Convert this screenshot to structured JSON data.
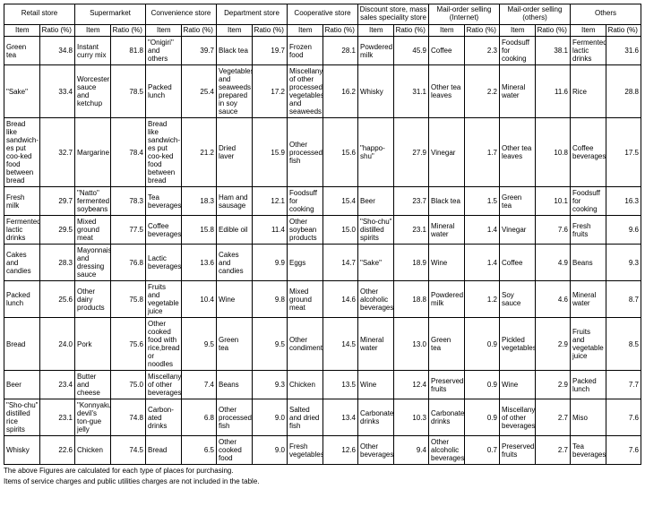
{
  "categories": [
    "Retail store",
    "Supermarket",
    "Convenience store",
    "Department store",
    "Cooperative store",
    "Discount store, mass sales speciality store",
    "Mail-order selling (Internet)",
    "Mail-order selling (others)",
    "Others"
  ],
  "subheaders": {
    "item": "Item",
    "ratio": "Ratio (%)"
  },
  "rows": [
    [
      {
        "item": "Green tea",
        "ratio": "34.8"
      },
      {
        "item": "Instant curry mix",
        "ratio": "81.8"
      },
      {
        "item": "\"Onigiri\" and others",
        "ratio": "39.7"
      },
      {
        "item": "Black tea",
        "ratio": "19.7"
      },
      {
        "item": "Frozen food",
        "ratio": "28.1"
      },
      {
        "item": "Powdered milk",
        "ratio": "45.9"
      },
      {
        "item": "Coffee",
        "ratio": "2.3"
      },
      {
        "item": "Foodsuff for cooking",
        "ratio": "38.1"
      },
      {
        "item": "Fermented lactic drinks",
        "ratio": "31.6"
      }
    ],
    [
      {
        "item": "\"Sake\"",
        "ratio": "33.4"
      },
      {
        "item": "Worcester sauce and ketchup",
        "ratio": "78.5"
      },
      {
        "item": "Packed lunch",
        "ratio": "25.4"
      },
      {
        "item": "Vegetables and seaweeds prepared in soy sauce",
        "ratio": "17.2"
      },
      {
        "item": "Miscellany of other processed vegetables and seaweeds",
        "ratio": "16.2"
      },
      {
        "item": "Whisky",
        "ratio": "31.1"
      },
      {
        "item": "Other tea leaves",
        "ratio": "2.2"
      },
      {
        "item": "Mineral water",
        "ratio": "11.6"
      },
      {
        "item": "Rice",
        "ratio": "28.8"
      }
    ],
    [
      {
        "item": "Bread like sandwich-es put coo-ked food between bread",
        "ratio": "32.7"
      },
      {
        "item": "Margarine",
        "ratio": "78.4"
      },
      {
        "item": "Bread like sandwich-es put coo-ked food between bread",
        "ratio": "21.2"
      },
      {
        "item": "Dried laver",
        "ratio": "15.9"
      },
      {
        "item": "Other processed fish",
        "ratio": "15.6"
      },
      {
        "item": "\"happo-shu\"",
        "ratio": "27.9"
      },
      {
        "item": "Vinegar",
        "ratio": "1.7"
      },
      {
        "item": "Other tea leaves",
        "ratio": "10.8"
      },
      {
        "item": "Coffee beverages",
        "ratio": "17.5"
      }
    ],
    [
      {
        "item": "Fresh milk",
        "ratio": "29.7"
      },
      {
        "item": "\"Natto\" fermented soybeans",
        "ratio": "78.3"
      },
      {
        "item": "Tea beverages",
        "ratio": "18.3"
      },
      {
        "item": "Ham and sausage",
        "ratio": "12.1"
      },
      {
        "item": "Foodsuff for cooking",
        "ratio": "15.4"
      },
      {
        "item": "Beer",
        "ratio": "23.7"
      },
      {
        "item": "Black tea",
        "ratio": "1.5"
      },
      {
        "item": "Green tea",
        "ratio": "10.1"
      },
      {
        "item": "Foodsuff for cooking",
        "ratio": "16.3"
      }
    ],
    [
      {
        "item": "Fermented lactic drinks",
        "ratio": "29.5"
      },
      {
        "item": "Mixed ground meat",
        "ratio": "77.5"
      },
      {
        "item": "Coffee beverages",
        "ratio": "15.8"
      },
      {
        "item": "Edible oil",
        "ratio": "11.4"
      },
      {
        "item": "Other soybean products",
        "ratio": "15.0"
      },
      {
        "item": "\"Sho-chu\" distilled spirits",
        "ratio": "23.1"
      },
      {
        "item": "Mineral water",
        "ratio": "1.4"
      },
      {
        "item": "Vinegar",
        "ratio": "7.6"
      },
      {
        "item": "Fresh fruits",
        "ratio": "9.6"
      }
    ],
    [
      {
        "item": "Cakes and candies",
        "ratio": "28.3"
      },
      {
        "item": "Mayonnaise and dressing sauce",
        "ratio": "76.8"
      },
      {
        "item": "Lactic beverages",
        "ratio": "13.6"
      },
      {
        "item": "Cakes and candies",
        "ratio": "9.9"
      },
      {
        "item": "Eggs",
        "ratio": "14.7"
      },
      {
        "item": "\"Sake\"",
        "ratio": "18.9"
      },
      {
        "item": "Wine",
        "ratio": "1.4"
      },
      {
        "item": "Coffee",
        "ratio": "4.9"
      },
      {
        "item": "Beans",
        "ratio": "9.3"
      }
    ],
    [
      {
        "item": "Packed lunch",
        "ratio": "25.6"
      },
      {
        "item": "Other dairy products",
        "ratio": "75.8"
      },
      {
        "item": "Fruits and vegetable juice",
        "ratio": "10.4"
      },
      {
        "item": "Wine",
        "ratio": "9.8"
      },
      {
        "item": "Mixed ground meat",
        "ratio": "14.6"
      },
      {
        "item": "Other alcoholic beverages",
        "ratio": "18.8"
      },
      {
        "item": "Powdered milk",
        "ratio": "1.2"
      },
      {
        "item": "Soy sauce",
        "ratio": "4.6"
      },
      {
        "item": "Mineral water",
        "ratio": "8.7"
      }
    ],
    [
      {
        "item": "Bread",
        "ratio": "24.0"
      },
      {
        "item": "Pork",
        "ratio": "75.6"
      },
      {
        "item": "Other cooked food with rice,bread or noodles",
        "ratio": "9.5"
      },
      {
        "item": "Green tea",
        "ratio": "9.5"
      },
      {
        "item": "Other condiments",
        "ratio": "14.5"
      },
      {
        "item": "Mineral water",
        "ratio": "13.0"
      },
      {
        "item": "Green tea",
        "ratio": "0.9"
      },
      {
        "item": "Pickled vegetables",
        "ratio": "2.9"
      },
      {
        "item": "Fruits and vegetable juice",
        "ratio": "8.5"
      }
    ],
    [
      {
        "item": "Beer",
        "ratio": "23.4"
      },
      {
        "item": "Butter and cheese",
        "ratio": "75.0"
      },
      {
        "item": "Miscellany of other beverages",
        "ratio": "7.4"
      },
      {
        "item": "Beans",
        "ratio": "9.3"
      },
      {
        "item": "Chicken",
        "ratio": "13.5"
      },
      {
        "item": "Wine",
        "ratio": "12.4"
      },
      {
        "item": "Preserved fruits",
        "ratio": "0.9"
      },
      {
        "item": "Wine",
        "ratio": "2.9"
      },
      {
        "item": "Packed lunch",
        "ratio": "7.7"
      }
    ],
    [
      {
        "item": "\"Sho-chu\" distilled rice spirits",
        "ratio": "23.1"
      },
      {
        "item": "\"Konnyaku\" devil's ton-gue jelly",
        "ratio": "74.8"
      },
      {
        "item": "Carbon-ated drinks",
        "ratio": "6.8"
      },
      {
        "item": "Other processed fish",
        "ratio": "9.0"
      },
      {
        "item": "Salted and dried fish",
        "ratio": "13.4"
      },
      {
        "item": "Carbonated drinks",
        "ratio": "10.3"
      },
      {
        "item": "Carbonated drinks",
        "ratio": "0.9"
      },
      {
        "item": "Miscellany of other beverages",
        "ratio": "2.7"
      },
      {
        "item": "Miso",
        "ratio": "7.6"
      }
    ],
    [
      {
        "item": "Whisky",
        "ratio": "22.6"
      },
      {
        "item": "Chicken",
        "ratio": "74.5"
      },
      {
        "item": "Bread",
        "ratio": "6.5"
      },
      {
        "item": "Other cooked food",
        "ratio": "9.0"
      },
      {
        "item": "Fresh vegetables",
        "ratio": "12.6"
      },
      {
        "item": "Other beverages",
        "ratio": "9.4"
      },
      {
        "item": "Other alcoholic beverages",
        "ratio": "0.7"
      },
      {
        "item": "Preserved fruits",
        "ratio": "2.7"
      },
      {
        "item": "Tea beverages",
        "ratio": "7.6"
      }
    ]
  ],
  "footnotes": [
    "The above Figures are calculated for each type of places for purchasing.",
    "Items of service charges and public utilities charges are not included in the table."
  ]
}
